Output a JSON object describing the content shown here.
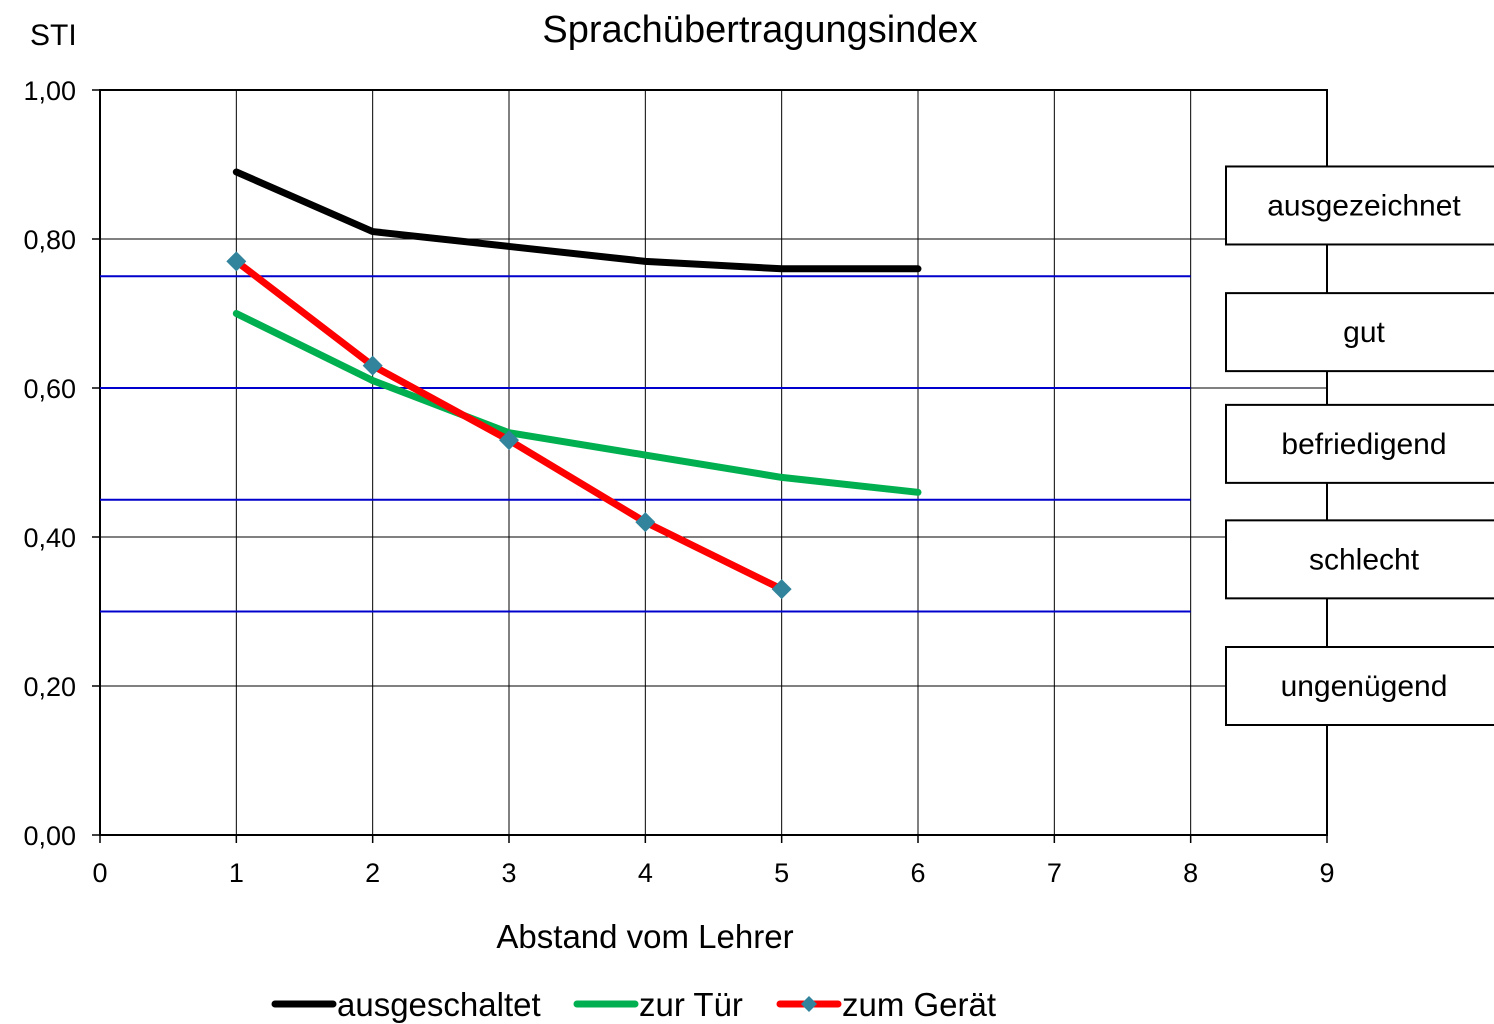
{
  "chart_data": {
    "type": "line",
    "title": "Sprachübertragungsindex",
    "ylabel": "STI",
    "xlabel": "Abstand vom Lehrer",
    "xlim": [
      0,
      9
    ],
    "ylim": [
      0,
      1
    ],
    "x_ticks": [
      "0",
      "1",
      "2",
      "3",
      "4",
      "5",
      "6",
      "7",
      "8",
      "9"
    ],
    "y_ticks": [
      "0,00",
      "0,20",
      "0,40",
      "0,60",
      "0,80",
      "1,00"
    ],
    "grid": true,
    "legend_position": "bottom",
    "series": [
      {
        "name": "ausgeschaltet",
        "color": "#000000",
        "marker": "none",
        "x": [
          1,
          2,
          3,
          4,
          5,
          6
        ],
        "y": [
          0.89,
          0.81,
          0.79,
          0.77,
          0.76,
          0.76
        ]
      },
      {
        "name": "zur Tür",
        "color": "#00b050",
        "marker": "none",
        "x": [
          1,
          2,
          3,
          4,
          5,
          6
        ],
        "y": [
          0.7,
          0.61,
          0.54,
          0.51,
          0.48,
          0.46
        ]
      },
      {
        "name": "zum Gerät",
        "color": "#ff0000",
        "marker": "diamond",
        "marker_color": "#31849b",
        "x": [
          1,
          2,
          3,
          4,
          5
        ],
        "y": [
          0.77,
          0.63,
          0.53,
          0.42,
          0.33
        ]
      }
    ],
    "reference_lines": {
      "color": "#0000cc",
      "y": [
        0.75,
        0.6,
        0.45,
        0.3
      ],
      "x_range": [
        0,
        8
      ]
    },
    "rating_bands": [
      {
        "label": "ausgezeichnet",
        "y_center": 0.845
      },
      {
        "label": "gut",
        "y_center": 0.675
      },
      {
        "label": "befriedigend",
        "y_center": 0.525
      },
      {
        "label": "schlecht",
        "y_center": 0.37
      },
      {
        "label": "ungenügend",
        "y_center": 0.2
      }
    ]
  }
}
